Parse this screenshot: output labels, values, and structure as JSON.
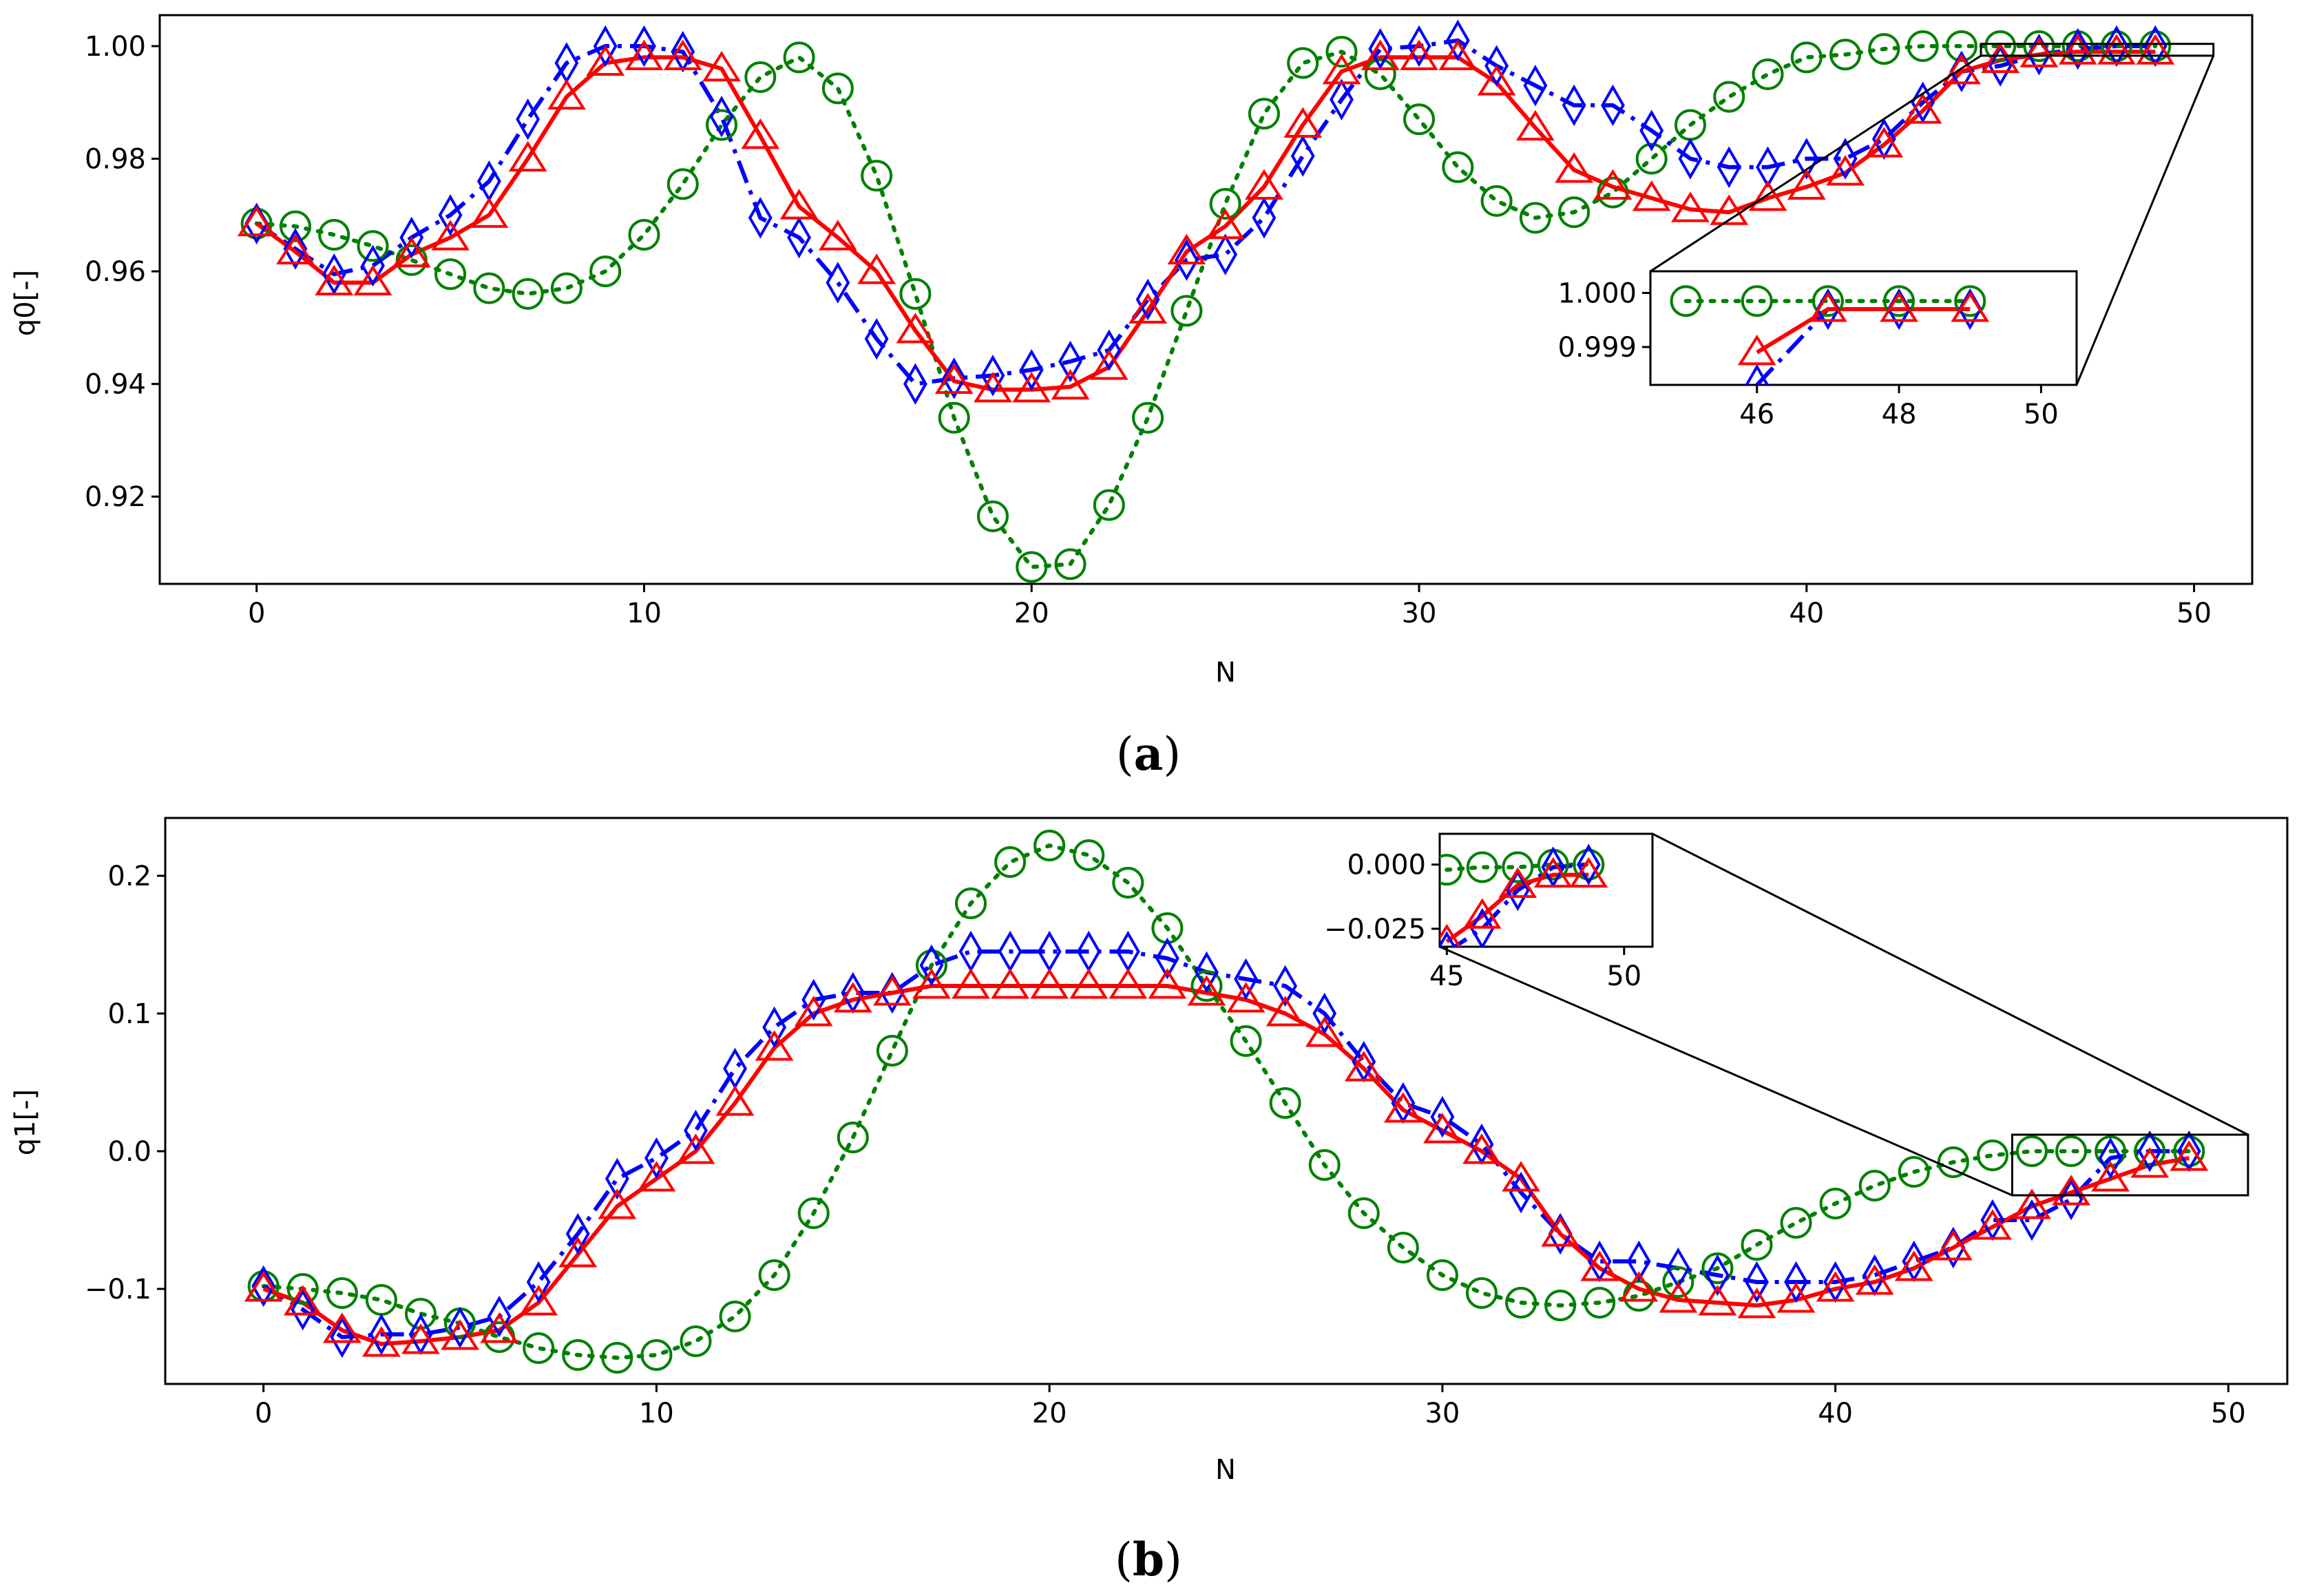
{
  "colors": {
    "series1": "#0000ff",
    "series2": "#ff0000",
    "series3": "#008000",
    "frame": "#000000"
  },
  "chart_data": [
    {
      "type": "line",
      "caption_letter": "a",
      "xlabel": "N",
      "ylabel": "q0[-]",
      "xlim": [
        -2.5,
        51.5
      ],
      "ylim": [
        0.9045,
        1.0055
      ],
      "xticks": [
        0,
        10,
        20,
        30,
        40,
        50
      ],
      "yticks": [
        0.92,
        0.94,
        0.96,
        0.98,
        1.0
      ],
      "ytick_labels": [
        "0.92",
        "0.94",
        "0.96",
        "0.98",
        "1.00"
      ],
      "grid": false,
      "series": [
        {
          "name": "series-blue-diamond",
          "marker": "diamond",
          "linestyle": "dashdot",
          "color": "#0000ff",
          "values": [
            0.9685,
            0.964,
            0.9595,
            0.961,
            0.966,
            0.97,
            0.976,
            0.987,
            0.997,
            1.0,
            1.0,
            0.999,
            0.9875,
            0.9695,
            0.966,
            0.958,
            0.948,
            0.94,
            0.941,
            0.9415,
            0.9425,
            0.944,
            0.946,
            0.955,
            0.962,
            0.963,
            0.9695,
            0.9805,
            0.9905,
            0.9995,
            1.0,
            1.001,
            0.9965,
            0.993,
            0.9895,
            0.9895,
            0.985,
            0.98,
            0.9785,
            0.9785,
            0.98,
            0.98,
            0.9835,
            0.99,
            0.9955,
            0.9965,
            0.9985,
            0.9995,
            1.0,
            1.0
          ]
        },
        {
          "name": "series-red-triangle",
          "marker": "triangle",
          "linestyle": "solid",
          "color": "#ff0000",
          "values": [
            0.9685,
            0.9635,
            0.958,
            0.958,
            0.963,
            0.966,
            0.97,
            0.98,
            0.991,
            0.997,
            0.998,
            0.998,
            0.996,
            0.984,
            0.9715,
            0.966,
            0.96,
            0.9495,
            0.9405,
            0.939,
            0.939,
            0.9395,
            0.943,
            0.953,
            0.9635,
            0.968,
            0.975,
            0.986,
            0.9955,
            0.998,
            0.998,
            0.998,
            0.9935,
            0.9855,
            0.978,
            0.975,
            0.973,
            0.971,
            0.9705,
            0.973,
            0.975,
            0.9775,
            0.9825,
            0.9885,
            0.9955,
            0.9975,
            0.9985,
            0.999,
            0.999,
            0.999
          ]
        },
        {
          "name": "series-green-circle",
          "marker": "circle",
          "linestyle": "dotted",
          "color": "#008000",
          "values": [
            0.9685,
            0.968,
            0.9665,
            0.9645,
            0.962,
            0.9595,
            0.957,
            0.956,
            0.957,
            0.96,
            0.9665,
            0.9755,
            0.986,
            0.9945,
            0.998,
            0.9925,
            0.977,
            0.956,
            0.934,
            0.9165,
            0.9075,
            0.908,
            0.9185,
            0.934,
            0.953,
            0.972,
            0.988,
            0.997,
            0.999,
            0.995,
            0.987,
            0.9785,
            0.9725,
            0.9695,
            0.9705,
            0.974,
            0.98,
            0.986,
            0.991,
            0.995,
            0.998,
            0.9985,
            0.9995,
            1.0,
            1.0,
            1.0,
            1.0,
            1.0,
            1.0,
            1.0
          ]
        }
      ],
      "inset": {
        "xlim": [
          44.5,
          50.5
        ],
        "ylim": [
          0.9983,
          1.0004
        ],
        "xticks": [
          46,
          48,
          50
        ],
        "yticks": [
          0.999,
          1.0
        ],
        "ytick_labels": [
          "0.999",
          "1.000"
        ],
        "zoom_region": {
          "x": [
            44.5,
            50.5
          ],
          "y": [
            0.9983,
            1.0004
          ]
        },
        "series": [
          {
            "name": "inset-blue",
            "x": [
              46,
              47,
              48,
              49
            ],
            "values": [
              0.9983,
              0.9997,
              0.9997,
              0.9997
            ]
          },
          {
            "name": "inset-red",
            "x": [
              46,
              47,
              48,
              49
            ],
            "values": [
              0.9989,
              0.9997,
              0.9997,
              0.9997
            ]
          },
          {
            "name": "inset-green",
            "x": [
              45,
              46,
              47,
              48,
              49
            ],
            "values": [
              0.99985,
              0.99985,
              0.99985,
              0.99985,
              0.99985
            ]
          }
        ]
      }
    },
    {
      "type": "line",
      "caption_letter": "b",
      "xlabel": "N",
      "ylabel": "q1[-]",
      "xlim": [
        -2.5,
        51.5
      ],
      "ylim": [
        -0.169,
        0.242
      ],
      "xticks": [
        0,
        10,
        20,
        30,
        40,
        50
      ],
      "yticks": [
        -0.1,
        0.0,
        0.1,
        0.2
      ],
      "ytick_labels": [
        "−0.1",
        "0.0",
        "0.1",
        "0.2"
      ],
      "grid": false,
      "series": [
        {
          "name": "series-blue-diamond",
          "marker": "diamond",
          "linestyle": "dashdot",
          "color": "#0000ff",
          "values": [
            -0.098,
            -0.115,
            -0.135,
            -0.133,
            -0.133,
            -0.128,
            -0.12,
            -0.095,
            -0.06,
            -0.02,
            -0.005,
            0.015,
            0.06,
            0.09,
            0.11,
            0.115,
            0.115,
            0.135,
            0.145,
            0.145,
            0.145,
            0.145,
            0.145,
            0.14,
            0.13,
            0.125,
            0.12,
            0.1,
            0.065,
            0.035,
            0.025,
            0.005,
            -0.03,
            -0.06,
            -0.08,
            -0.08,
            -0.085,
            -0.09,
            -0.095,
            -0.095,
            -0.095,
            -0.09,
            -0.08,
            -0.07,
            -0.05,
            -0.05,
            -0.035,
            -0.005,
            0.0,
            0.0
          ]
        },
        {
          "name": "series-red-triangle",
          "marker": "triangle",
          "linestyle": "solid",
          "color": "#ff0000",
          "values": [
            -0.1,
            -0.11,
            -0.13,
            -0.14,
            -0.138,
            -0.135,
            -0.13,
            -0.11,
            -0.075,
            -0.04,
            -0.02,
            0.0,
            0.035,
            0.075,
            0.1,
            0.11,
            0.115,
            0.12,
            0.12,
            0.12,
            0.12,
            0.12,
            0.12,
            0.12,
            0.115,
            0.11,
            0.1,
            0.085,
            0.06,
            0.03,
            0.015,
            0.0,
            -0.02,
            -0.06,
            -0.085,
            -0.1,
            -0.108,
            -0.11,
            -0.112,
            -0.108,
            -0.1,
            -0.095,
            -0.085,
            -0.07,
            -0.055,
            -0.04,
            -0.03,
            -0.02,
            -0.01,
            -0.005
          ]
        },
        {
          "name": "series-green-circle",
          "marker": "circle",
          "linestyle": "dotted",
          "color": "#008000",
          "values": [
            -0.098,
            -0.1,
            -0.103,
            -0.108,
            -0.118,
            -0.125,
            -0.135,
            -0.143,
            -0.148,
            -0.15,
            -0.148,
            -0.138,
            -0.12,
            -0.09,
            -0.045,
            0.01,
            0.073,
            0.135,
            0.18,
            0.21,
            0.222,
            0.215,
            0.195,
            0.162,
            0.12,
            0.08,
            0.035,
            -0.01,
            -0.045,
            -0.07,
            -0.09,
            -0.103,
            -0.11,
            -0.112,
            -0.11,
            -0.105,
            -0.095,
            -0.085,
            -0.068,
            -0.052,
            -0.038,
            -0.025,
            -0.015,
            -0.008,
            -0.003,
            0.0,
            0.0,
            0.0,
            0.0,
            0.0
          ]
        }
      ],
      "inset": {
        "xlim": [
          44.8,
          50.8
        ],
        "ylim": [
          -0.032,
          0.012
        ],
        "xticks": [
          45,
          50
        ],
        "yticks": [
          -0.025,
          0.0
        ],
        "ytick_labels": [
          "−0.025",
          "0.000"
        ],
        "zoom_region": {
          "x": [
            44.5,
            50.5
          ],
          "y": [
            -0.032,
            0.012
          ]
        },
        "series": [
          {
            "name": "inset-blue",
            "x": [
              45,
              46,
              47,
              48,
              49
            ],
            "values": [
              -0.034,
              -0.025,
              -0.01,
              -0.001,
              0.0
            ]
          },
          {
            "name": "inset-red",
            "x": [
              45,
              46,
              47,
              48,
              49
            ],
            "values": [
              -0.03,
              -0.02,
              -0.008,
              -0.004,
              -0.004
            ]
          },
          {
            "name": "inset-green",
            "x": [
              45,
              46,
              47,
              48,
              49
            ],
            "values": [
              -0.002,
              -0.001,
              -0.001,
              0.0,
              0.0
            ]
          }
        ]
      }
    }
  ]
}
